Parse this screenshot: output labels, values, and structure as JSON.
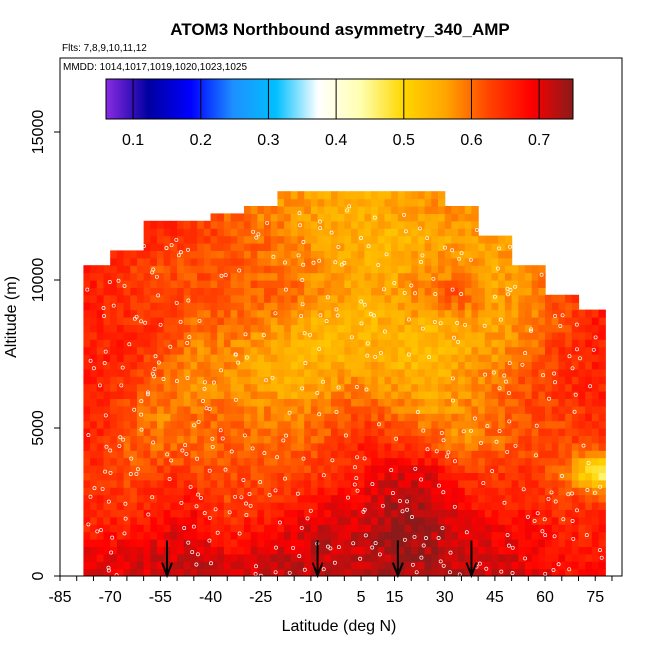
{
  "chart_data": {
    "type": "heatmap",
    "title": "ATOM3 Northbound asymmetry_340_AMP",
    "flights_label": "Flts: 7,8,9,10,11,12",
    "mmdd_label": "MMDD: 1014,1017,1019,1020,1023,1025",
    "xlabel": "Latitude (deg N)",
    "ylabel": "Altitude (m)",
    "xlim": [
      -85,
      83
    ],
    "ylim": [
      0,
      17500
    ],
    "x_ticks": [
      -85,
      -70,
      -55,
      -40,
      -25,
      -10,
      5,
      15,
      30,
      45,
      60,
      75
    ],
    "x_minor_step": 5,
    "y_ticks": [
      0,
      5000,
      10000,
      15000
    ],
    "colorbar": {
      "range": [
        0.06,
        0.75
      ],
      "ticks": [
        0.1,
        0.2,
        0.3,
        0.4,
        0.5,
        0.6,
        0.7
      ],
      "colors": [
        "#8a2be2",
        "#0000a0",
        "#0000ff",
        "#1e90ff",
        "#00bfff",
        "#ffffff",
        "#ffffb0",
        "#ffd700",
        "#ffa500",
        "#ff4500",
        "#ff0000",
        "#8b1a1a"
      ]
    },
    "coverage": {
      "lat_edges": [
        -78,
        -70,
        -60,
        -50,
        -40,
        -30,
        -20,
        -10,
        0,
        10,
        20,
        30,
        40,
        50,
        60,
        70,
        78
      ],
      "max_alt": [
        10500,
        11000,
        11800,
        12000,
        12200,
        12500,
        13000,
        13000,
        13000,
        13000,
        12800,
        12500,
        11500,
        10500,
        9500,
        9000
      ]
    },
    "grid": {
      "lat_centers": [
        -75,
        -65,
        -55,
        -45,
        -35,
        -25,
        -15,
        -5,
        5,
        15,
        25,
        35,
        45,
        55,
        65,
        75
      ],
      "alt_centers": [
        500,
        1500,
        2500,
        3500,
        4500,
        5500,
        6500,
        7500,
        8500,
        9500,
        10500,
        11500,
        12500
      ],
      "values": [
        [
          0.7,
          0.7,
          0.71,
          0.72,
          0.7,
          0.71,
          0.72,
          0.72,
          0.72,
          0.73,
          0.73,
          0.72,
          0.71,
          0.7,
          0.68,
          0.67
        ],
        [
          0.66,
          0.67,
          0.69,
          0.7,
          0.66,
          0.68,
          0.7,
          0.72,
          0.71,
          0.74,
          0.73,
          0.71,
          0.69,
          0.68,
          0.66,
          0.66
        ],
        [
          0.65,
          0.64,
          0.66,
          0.67,
          0.63,
          0.64,
          0.66,
          0.68,
          0.7,
          0.73,
          0.72,
          0.68,
          0.66,
          0.66,
          0.64,
          0.64
        ],
        [
          0.64,
          0.62,
          0.64,
          0.63,
          0.62,
          0.62,
          0.63,
          0.64,
          0.66,
          0.71,
          0.7,
          0.64,
          0.64,
          0.65,
          0.6,
          0.45
        ],
        [
          0.66,
          0.61,
          0.6,
          0.6,
          0.61,
          0.6,
          0.6,
          0.62,
          0.66,
          0.64,
          0.63,
          0.58,
          0.6,
          0.62,
          0.62,
          0.64
        ],
        [
          0.66,
          0.62,
          0.58,
          0.6,
          0.6,
          0.59,
          0.58,
          0.6,
          0.62,
          0.6,
          0.56,
          0.58,
          0.6,
          0.62,
          0.63,
          0.65
        ],
        [
          0.66,
          0.64,
          0.6,
          0.58,
          0.58,
          0.56,
          0.55,
          0.57,
          0.58,
          0.56,
          0.55,
          0.57,
          0.59,
          0.62,
          0.64,
          0.66
        ],
        [
          0.66,
          0.66,
          0.62,
          0.58,
          0.58,
          0.56,
          0.54,
          0.54,
          0.55,
          0.54,
          0.53,
          0.55,
          0.57,
          0.6,
          0.64,
          0.66
        ],
        [
          0.66,
          0.65,
          0.64,
          0.6,
          0.6,
          0.58,
          0.56,
          0.54,
          0.54,
          0.55,
          0.54,
          0.56,
          0.56,
          0.58,
          0.62,
          0.66
        ],
        [
          0.66,
          0.64,
          0.63,
          0.62,
          0.62,
          0.61,
          0.6,
          0.57,
          0.55,
          0.56,
          0.6,
          0.62,
          0.56,
          0.58,
          0.62,
          0.66
        ],
        [
          0.66,
          0.64,
          0.62,
          0.62,
          0.61,
          0.6,
          0.59,
          0.57,
          0.55,
          0.55,
          0.57,
          0.58,
          0.56,
          0.58,
          0.62,
          0.65
        ],
        [
          0.66,
          0.66,
          0.65,
          0.64,
          0.62,
          0.6,
          0.58,
          0.56,
          0.55,
          0.54,
          0.55,
          0.56,
          0.56,
          0.58,
          0.6,
          0.62
        ],
        [
          0.66,
          0.66,
          0.66,
          0.64,
          0.6,
          0.58,
          0.57,
          0.56,
          0.55,
          0.56,
          0.57,
          0.58,
          0.58,
          0.58,
          0.6,
          0.62
        ]
      ]
    },
    "arrows_lat": [
      -53,
      -8,
      16,
      38
    ]
  }
}
